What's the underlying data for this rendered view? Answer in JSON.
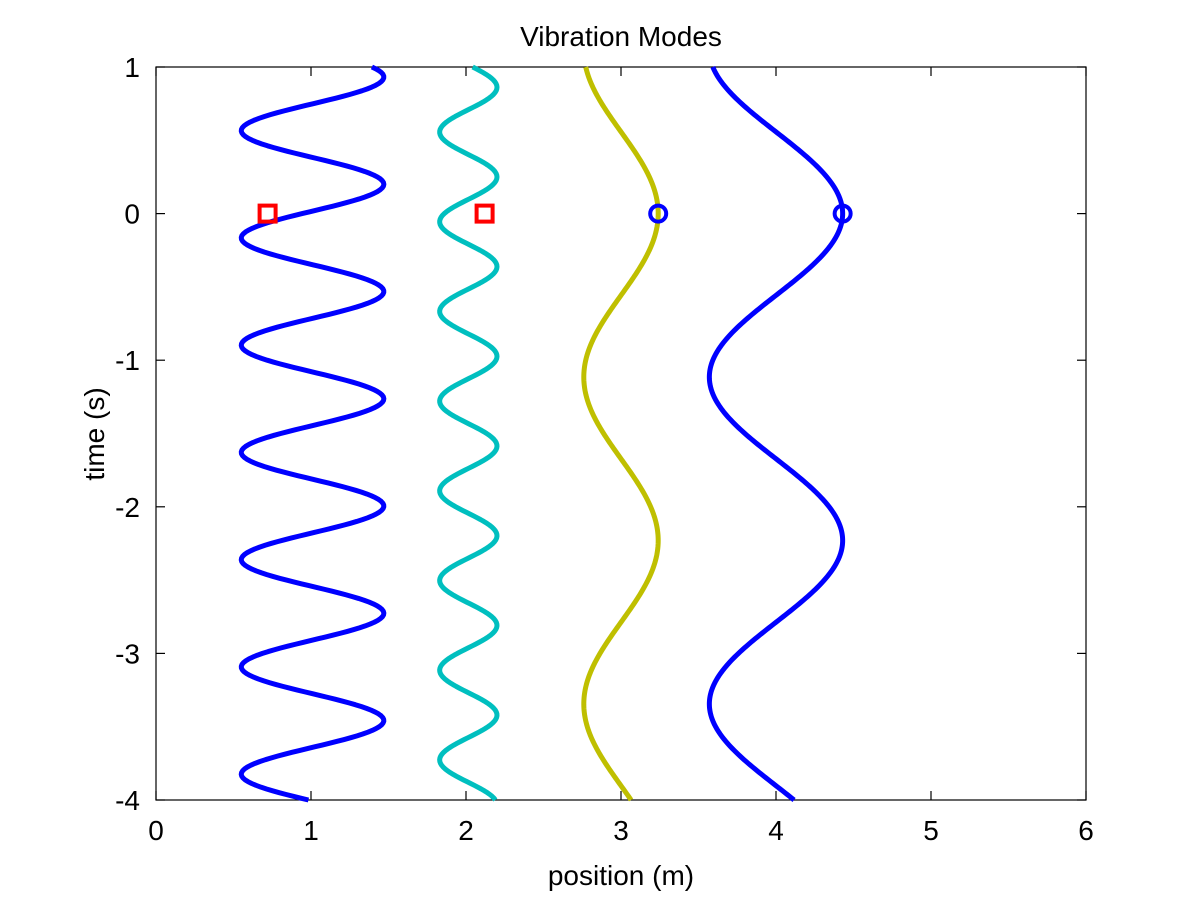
{
  "chart_data": {
    "type": "line",
    "title": "Vibration Modes",
    "xlabel": "position (m)",
    "ylabel": "time (s)",
    "xlim": [
      0,
      6
    ],
    "ylim": [
      -4,
      1
    ],
    "xticks": [
      "0",
      "1",
      "2",
      "3",
      "4",
      "5",
      "6"
    ],
    "yticks": [
      "-4",
      "-3",
      "-2",
      "-1",
      "0",
      "1"
    ],
    "grid": false,
    "legend": "none",
    "series": [
      {
        "color": "#0000ff",
        "center": 1.01,
        "amplitude": 0.46,
        "period": 0.7316,
        "t_max": 0.2,
        "y_range": [
          -4,
          1
        ],
        "marker": {
          "shape": "square",
          "color": "#ff0000",
          "x": 0.72,
          "y": 0
        }
      },
      {
        "color": "#00bfbf",
        "center": 2.015,
        "amplitude": 0.185,
        "period": 0.6118,
        "t_max": 0.25,
        "y_range": [
          -4,
          1
        ],
        "marker": {
          "shape": "square",
          "color": "#ff0000",
          "x": 2.12,
          "y": 0
        }
      },
      {
        "color": "#bfbf00",
        "center": 3.0,
        "amplitude": 0.24,
        "period": 2.23,
        "t_max": 0.0,
        "y_range": [
          -4,
          1
        ],
        "marker": {
          "shape": "circle",
          "color": "#0000ff",
          "x": 3.24,
          "y": 0
        }
      },
      {
        "color": "#0000ff",
        "center": 4.0,
        "amplitude": 0.43,
        "period": 2.23,
        "t_max": 0.0,
        "y_range": [
          -4,
          1
        ],
        "marker": {
          "shape": "circle",
          "color": "#0000ff",
          "x": 4.43,
          "y": 0
        }
      }
    ]
  }
}
